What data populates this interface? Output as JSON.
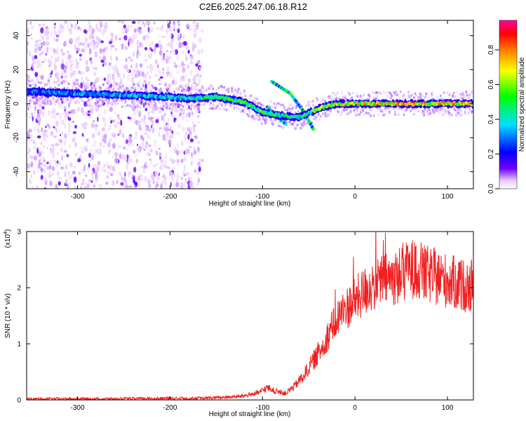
{
  "figure": {
    "title": "C2E6.2025.247.06.18.R12"
  },
  "chart_data": [
    {
      "type": "heatmap",
      "xlabel": "Height of straight line (km)",
      "ylabel": "Frequency (Hz)",
      "xlim": [
        -355,
        128
      ],
      "ylim": [
        -50,
        49
      ],
      "xticks": [
        -300,
        -200,
        -100,
        0,
        100
      ],
      "yticks": [
        -40,
        -20,
        0,
        20,
        40
      ],
      "colorbar": {
        "label": "Normalized spectral amplitude",
        "range": [
          0,
          0.97
        ],
        "ticks": [
          0.0,
          0.2,
          0.4,
          0.6,
          0.8
        ],
        "tick_labels": [
          "0.0",
          "0.2",
          "0.4",
          "0.6",
          "0.8"
        ],
        "colors": [
          "#ffffff",
          "#e8c8ff",
          "#7000ff",
          "#0000ff",
          "#00e0ff",
          "#00ff00",
          "#ffff00",
          "#ff8000",
          "#ff0000",
          "#ff00a0"
        ]
      },
      "ridge": {
        "x": [
          -350,
          -300,
          -250,
          -200,
          -180,
          -150,
          -120,
          -100,
          -80,
          -60,
          -40,
          -20,
          0,
          50,
          100,
          128
        ],
        "y": [
          7,
          6,
          5,
          4,
          3,
          4,
          1,
          -5,
          -7,
          -8,
          -3,
          0,
          0,
          0,
          0,
          0
        ],
        "peak_amplitude": [
          0.35,
          0.4,
          0.45,
          0.45,
          0.5,
          0.6,
          0.65,
          0.65,
          0.55,
          0.55,
          0.7,
          0.8,
          0.85,
          0.9,
          0.9,
          0.85
        ]
      },
      "side_branches": [
        {
          "x": [
            -90,
            -70,
            -55,
            -45
          ],
          "y": [
            13,
            6,
            -5,
            -15
          ]
        },
        {
          "x": [
            -95,
            -85,
            -75
          ],
          "y": [
            -2,
            -7,
            -12
          ]
        }
      ],
      "noise_region": {
        "x": [
          -355,
          -175
        ],
        "y": [
          -50,
          49
        ]
      }
    },
    {
      "type": "line",
      "xlabel": "Height of straight line (km)",
      "ylabel": "SNR (10 * v/v)",
      "multiplier": "(x10",
      "multiplier_exp": "4",
      "multiplier_close": ")",
      "xlim": [
        -355,
        128
      ],
      "ylim": [
        0,
        3
      ],
      "xticks": [
        -300,
        -200,
        -100,
        0,
        100
      ],
      "yticks": [
        0,
        1,
        2,
        3
      ],
      "series": [
        {
          "color": "#f02020",
          "x": [
            -355,
            -300,
            -250,
            -200,
            -175,
            -150,
            -125,
            -105,
            -95,
            -85,
            -75,
            -65,
            -55,
            -45,
            -35,
            -25,
            -15,
            -5,
            5,
            15,
            25,
            35,
            45,
            55,
            65,
            75,
            85,
            95,
            105,
            115,
            128
          ],
          "y": [
            0.02,
            0.02,
            0.02,
            0.03,
            0.03,
            0.04,
            0.06,
            0.12,
            0.22,
            0.15,
            0.12,
            0.25,
            0.45,
            0.7,
            0.95,
            1.3,
            1.55,
            1.7,
            1.85,
            2.0,
            2.1,
            2.15,
            2.2,
            2.3,
            2.35,
            2.25,
            2.2,
            2.15,
            2.1,
            2.05,
            2.0
          ]
        }
      ]
    }
  ]
}
